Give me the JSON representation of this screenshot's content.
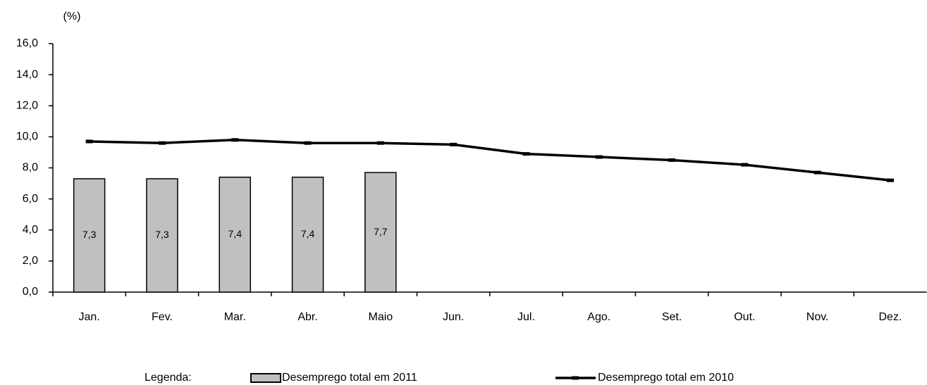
{
  "chart_data": {
    "type": "bar",
    "y_unit": "(%)",
    "categories": [
      "Jan.",
      "Fev.",
      "Mar.",
      "Abr.",
      "Maio",
      "Jun.",
      "Jul.",
      "Ago.",
      "Set.",
      "Out.",
      "Nov.",
      "Dez."
    ],
    "series": [
      {
        "name": "Desemprego total em 2011",
        "type": "bar",
        "color": "#c0c0c0",
        "values": [
          7.3,
          7.3,
          7.4,
          7.4,
          7.7,
          null,
          null,
          null,
          null,
          null,
          null,
          null
        ],
        "value_labels": [
          "7,3",
          "7,3",
          "7,4",
          "7,4",
          "7,7",
          null,
          null,
          null,
          null,
          null,
          null,
          null
        ]
      },
      {
        "name": "Desemprego total em 2010",
        "type": "line",
        "color": "#000000",
        "values": [
          9.7,
          9.6,
          9.8,
          9.6,
          9.6,
          9.5,
          8.9,
          8.7,
          8.5,
          8.2,
          7.7,
          7.2
        ]
      }
    ],
    "ylim": [
      0,
      16
    ],
    "yticks": [
      {
        "value": 0,
        "label": "0,0"
      },
      {
        "value": 2,
        "label": "2,0"
      },
      {
        "value": 4,
        "label": "4,0"
      },
      {
        "value": 6,
        "label": "6,0"
      },
      {
        "value": 8,
        "label": "8,0"
      },
      {
        "value": 10,
        "label": "10,0"
      },
      {
        "value": 12,
        "label": "12,0"
      },
      {
        "value": 14,
        "label": "14,0"
      },
      {
        "value": 16,
        "label": "16,0"
      }
    ],
    "legend_title": "Legenda:",
    "grid": false
  }
}
